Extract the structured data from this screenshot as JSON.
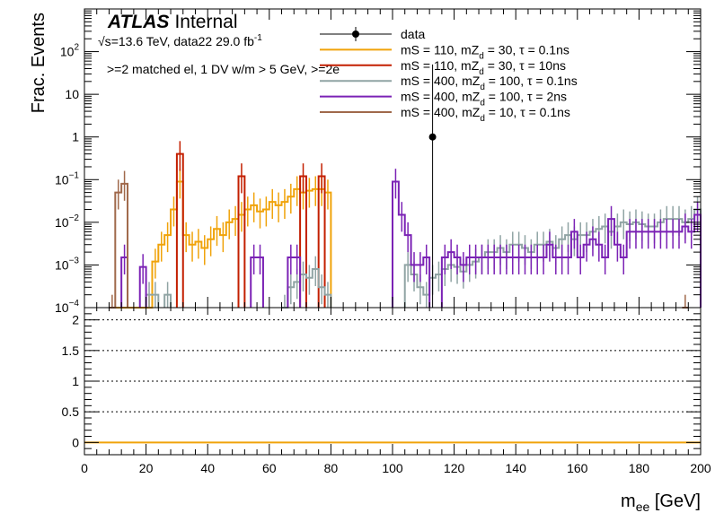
{
  "chart_data": {
    "type": "line",
    "upper": {
      "ylabel": "Frac. Events",
      "yscale": "log",
      "ylim": [
        0.0001,
        1000
      ],
      "yticks": [
        {
          "v": 0.0001,
          "b": "10",
          "e": "−4"
        },
        {
          "v": 0.001,
          "b": "10",
          "e": "−3"
        },
        {
          "v": 0.01,
          "b": "10",
          "e": "−2"
        },
        {
          "v": 0.1,
          "b": "10",
          "e": "−1"
        },
        {
          "v": 1,
          "b": "1",
          "e": ""
        },
        {
          "v": 10,
          "b": "10",
          "e": ""
        },
        {
          "v": 100,
          "b": "10",
          "e": "2"
        }
      ],
      "data_points": [
        {
          "x": 113,
          "y": 1.0
        }
      ],
      "series": [
        {
          "name": "mS = 110, mZ_d = 30, τ = 0.1ns",
          "color": "#f0a30a",
          "bins": [
            [
              10,
              0
            ],
            [
              12,
              0
            ],
            [
              14,
              0
            ],
            [
              16,
              0
            ],
            [
              18,
              0
            ],
            [
              20,
              0.0001
            ],
            [
              22,
              0.0012
            ],
            [
              24,
              0.003
            ],
            [
              26,
              0.005
            ],
            [
              28,
              0.02
            ],
            [
              30,
              0.09
            ],
            [
              32,
              0.005
            ],
            [
              34,
              0.003
            ],
            [
              36,
              0.0035
            ],
            [
              38,
              0.0025
            ],
            [
              40,
              0.004
            ],
            [
              42,
              0.007
            ],
            [
              44,
              0.005
            ],
            [
              46,
              0.01
            ],
            [
              48,
              0.012
            ],
            [
              50,
              0.015
            ],
            [
              52,
              0.02
            ],
            [
              54,
              0.025
            ],
            [
              56,
              0.018
            ],
            [
              58,
              0.02
            ],
            [
              60,
              0.03
            ],
            [
              62,
              0.025
            ],
            [
              64,
              0.03
            ],
            [
              66,
              0.04
            ],
            [
              68,
              0.06
            ],
            [
              70,
              0.05
            ],
            [
              72,
              0.055
            ],
            [
              74,
              0.06
            ],
            [
              76,
              0.06
            ],
            [
              78,
              0.05
            ]
          ]
        },
        {
          "name": "mS = 110, mZ_d = 30, τ = 10ns",
          "color": "#c31f00",
          "bins": [
            [
              30,
              0.4
            ],
            [
              50,
              0.12
            ],
            [
              70,
              0.12
            ],
            [
              76,
              0.12
            ]
          ]
        },
        {
          "name": "mS = 400, mZ_d = 100, τ = 0.1ns",
          "color": "#90a4a4",
          "bins": [
            [
              20,
              0.0002
            ],
            [
              22,
              0.0002
            ],
            [
              26,
              0.0002
            ],
            [
              64,
              0.0001
            ],
            [
              66,
              0.0003
            ],
            [
              68,
              0.0004
            ],
            [
              70,
              0.0006
            ],
            [
              72,
              0.0005
            ],
            [
              74,
              0.0008
            ],
            [
              76,
              0.0003
            ],
            [
              78,
              0.0002
            ],
            [
              104,
              0.001
            ],
            [
              106,
              0.0006
            ],
            [
              108,
              0.0003
            ],
            [
              110,
              0.0002
            ],
            [
              112,
              0.0005
            ],
            [
              114,
              0.0006
            ],
            [
              116,
              0.0008
            ],
            [
              118,
              0.001
            ],
            [
              120,
              0.0009
            ],
            [
              122,
              0.0007
            ],
            [
              124,
              0.001
            ],
            [
              126,
              0.0012
            ],
            [
              128,
              0.0015
            ],
            [
              130,
              0.002
            ],
            [
              132,
              0.002
            ],
            [
              134,
              0.0025
            ],
            [
              136,
              0.002
            ],
            [
              138,
              0.003
            ],
            [
              140,
              0.003
            ],
            [
              142,
              0.0025
            ],
            [
              144,
              0.002
            ],
            [
              146,
              0.003
            ],
            [
              148,
              0.003
            ],
            [
              150,
              0.0035
            ],
            [
              152,
              0.0025
            ],
            [
              154,
              0.004
            ],
            [
              156,
              0.005
            ],
            [
              158,
              0.004
            ],
            [
              160,
              0.005
            ],
            [
              162,
              0.005
            ],
            [
              164,
              0.006
            ],
            [
              166,
              0.007
            ],
            [
              168,
              0.008
            ],
            [
              170,
              0.006
            ],
            [
              172,
              0.008
            ],
            [
              174,
              0.01
            ],
            [
              176,
              0.009
            ],
            [
              178,
              0.01
            ],
            [
              180,
              0.009
            ],
            [
              182,
              0.008
            ],
            [
              184,
              0.008
            ],
            [
              186,
              0.01
            ],
            [
              188,
              0.012
            ],
            [
              190,
              0.012
            ],
            [
              192,
              0.012
            ],
            [
              194,
              0.01
            ],
            [
              196,
              0.012
            ],
            [
              198,
              0.02
            ]
          ]
        },
        {
          "name": "mS = 400, mZ_d = 100, τ = 2ns",
          "color": "#7b22b5",
          "bins": [
            [
              12,
              0.0015
            ],
            [
              18,
              0.0009
            ],
            [
              54,
              0.0015
            ],
            [
              56,
              0.0015
            ],
            [
              66,
              0.0015
            ],
            [
              68,
              0.0015
            ],
            [
              100,
              0.09
            ],
            [
              102,
              0.015
            ],
            [
              104,
              0.005
            ],
            [
              106,
              0.001
            ],
            [
              108,
              0.001
            ],
            [
              110,
              0.0015
            ],
            [
              116,
              0.0015
            ],
            [
              118,
              0.002
            ],
            [
              120,
              0.0015
            ],
            [
              122,
              0.001
            ],
            [
              124,
              0.0015
            ],
            [
              126,
              0.0015
            ],
            [
              128,
              0.0015
            ],
            [
              130,
              0.0015
            ],
            [
              132,
              0.0015
            ],
            [
              134,
              0.0015
            ],
            [
              136,
              0.0015
            ],
            [
              138,
              0.0015
            ],
            [
              140,
              0.0015
            ],
            [
              142,
              0.0015
            ],
            [
              144,
              0.0015
            ],
            [
              146,
              0.0015
            ],
            [
              148,
              0.0015
            ],
            [
              150,
              0.003
            ],
            [
              152,
              0.0015
            ],
            [
              154,
              0.0015
            ],
            [
              156,
              0.0015
            ],
            [
              158,
              0.006
            ],
            [
              160,
              0.0015
            ],
            [
              162,
              0.003
            ],
            [
              164,
              0.004
            ],
            [
              166,
              0.003
            ],
            [
              168,
              0.0015
            ],
            [
              170,
              0.012
            ],
            [
              172,
              0.003
            ],
            [
              174,
              0.0015
            ],
            [
              176,
              0.006
            ],
            [
              178,
              0.006
            ],
            [
              180,
              0.006
            ],
            [
              182,
              0.006
            ],
            [
              184,
              0.006
            ],
            [
              186,
              0.006
            ],
            [
              188,
              0.006
            ],
            [
              190,
              0.006
            ],
            [
              192,
              0.006
            ],
            [
              194,
              0.008
            ],
            [
              196,
              0.006
            ],
            [
              198,
              0.015
            ]
          ]
        },
        {
          "name": "mS = 400, mZ_d = 10, τ = 0.1ns",
          "color": "#a0694b",
          "bins": [
            [
              8,
              0.0001
            ],
            [
              10,
              0.05
            ],
            [
              12,
              0.08
            ],
            [
              194,
              0.0001
            ]
          ]
        }
      ]
    },
    "lower": {
      "ylim": [
        -0.2,
        2.2
      ],
      "yticks": [
        0,
        0.5,
        1,
        1.5,
        2
      ],
      "ytick_labels": [
        "0",
        "0.5",
        "1",
        "1.5",
        "2"
      ],
      "dotted_lines": [
        0.5,
        1,
        1.5,
        2
      ],
      "ratio_line": {
        "y": 0,
        "color": "#f0a30a"
      }
    },
    "xlim": [
      0,
      200
    ],
    "xticks": [
      0,
      20,
      40,
      60,
      80,
      100,
      120,
      140,
      160,
      180,
      200
    ],
    "xtick_labels": [
      "0",
      "20",
      "40",
      "60",
      "80",
      "100",
      "120",
      "140",
      "160",
      "180",
      "200"
    ],
    "xlabel_main": "m",
    "xlabel_sub": "ee",
    "xlabel_unit": " [GeV]"
  },
  "atlas": {
    "brand": "ATLAS",
    "status": "Internal"
  },
  "energy": {
    "sqrt": "√s",
    "text": "=13.6 TeV, data22 29.0 fb",
    "sup": "-1"
  },
  "selection": ">=2 matched el, 1 DV w/m > 5 GeV, >=2e",
  "legend": [
    {
      "kind": "marker",
      "color": "#000000",
      "label": "data"
    },
    {
      "kind": "line",
      "color": "#f0a30a",
      "pre": "mS = 110, mZ",
      "sub": "d",
      "post": " = 30, τ = 0.1ns"
    },
    {
      "kind": "line",
      "color": "#c31f00",
      "pre": "mS = 110, mZ",
      "sub": "d",
      "post": " = 30, τ = 10ns"
    },
    {
      "kind": "line",
      "color": "#90a4a4",
      "pre": "mS = 400, mZ",
      "sub": "d",
      "post": " = 100, τ = 0.1ns"
    },
    {
      "kind": "line",
      "color": "#7b22b5",
      "pre": "mS = 400, mZ",
      "sub": "d",
      "post": " = 100, τ = 2ns"
    },
    {
      "kind": "line",
      "color": "#a0694b",
      "pre": "mS = 400, mZ",
      "sub": "d",
      "post": " = 10, τ = 0.1ns"
    }
  ]
}
